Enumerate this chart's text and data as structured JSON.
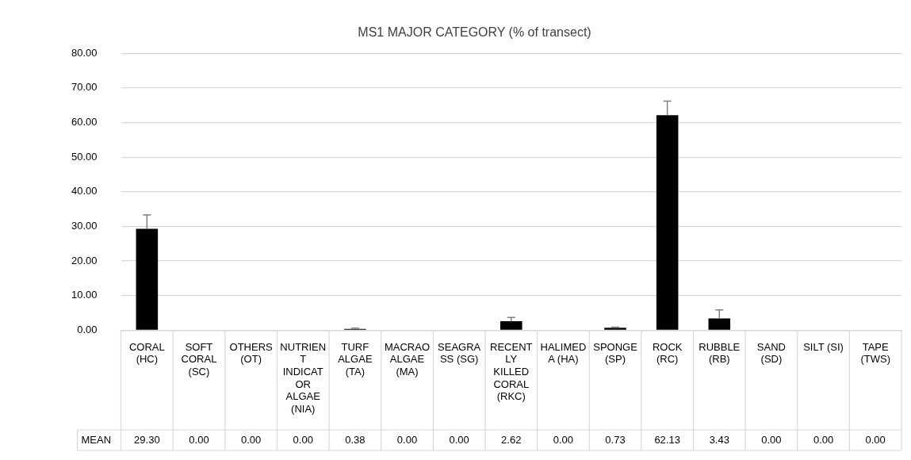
{
  "chart_data": {
    "type": "bar",
    "title": "MS1 MAJOR CATEGORY (% of transect)",
    "categories": [
      "CORAL (HC)",
      "SOFT CORAL (SC)",
      "OTHERS (OT)",
      "NUTRIENT INDICATOR ALGAE (NIA)",
      "TURF ALGAE (TA)",
      "MACRAOALGAE (MA)",
      "SEAGRASS (SG)",
      "RECENTLY KILLED CORAL (RKC)",
      "HALIMEDA (HA)",
      "SPONGE (SP)",
      "ROCK (RC)",
      "RUBBLE (RB)",
      "SAND (SD)",
      "SILT (SI)",
      "TAPE (TWS)"
    ],
    "series": [
      {
        "name": "MEAN",
        "color": "#000000",
        "values": [
          29.3,
          0.0,
          0.0,
          0.0,
          0.38,
          0.0,
          0.0,
          2.62,
          0.0,
          0.73,
          62.13,
          3.43,
          0.0,
          0.0,
          0.0
        ],
        "value_labels": [
          "29.30",
          "0.00",
          "0.00",
          "0.00",
          "0.38",
          "0.00",
          "0.00",
          "2.62",
          "0.00",
          "0.73",
          "62.13",
          "3.43",
          "0.00",
          "0.00",
          "0.00"
        ],
        "errors": [
          [
            29.3,
            33.3
          ],
          null,
          null,
          null,
          [
            0.38,
            0.6
          ],
          null,
          null,
          [
            2.62,
            3.7
          ],
          null,
          [
            0.73,
            0.9
          ],
          [
            62.13,
            66.2
          ],
          [
            3.43,
            5.9
          ],
          null,
          null,
          null
        ]
      }
    ],
    "ylim": [
      0,
      80
    ],
    "yticks": [
      {
        "value": 0,
        "label": "0.00"
      },
      {
        "value": 10,
        "label": "10.00"
      },
      {
        "value": 20,
        "label": "20.00"
      },
      {
        "value": 30,
        "label": "30.00"
      },
      {
        "value": 40,
        "label": "40.00"
      },
      {
        "value": 50,
        "label": "50.00"
      },
      {
        "value": 60,
        "label": "60.00"
      },
      {
        "value": 70,
        "label": "70.00"
      },
      {
        "value": 80,
        "label": "80.00"
      }
    ],
    "grid": "y",
    "legend": false
  }
}
